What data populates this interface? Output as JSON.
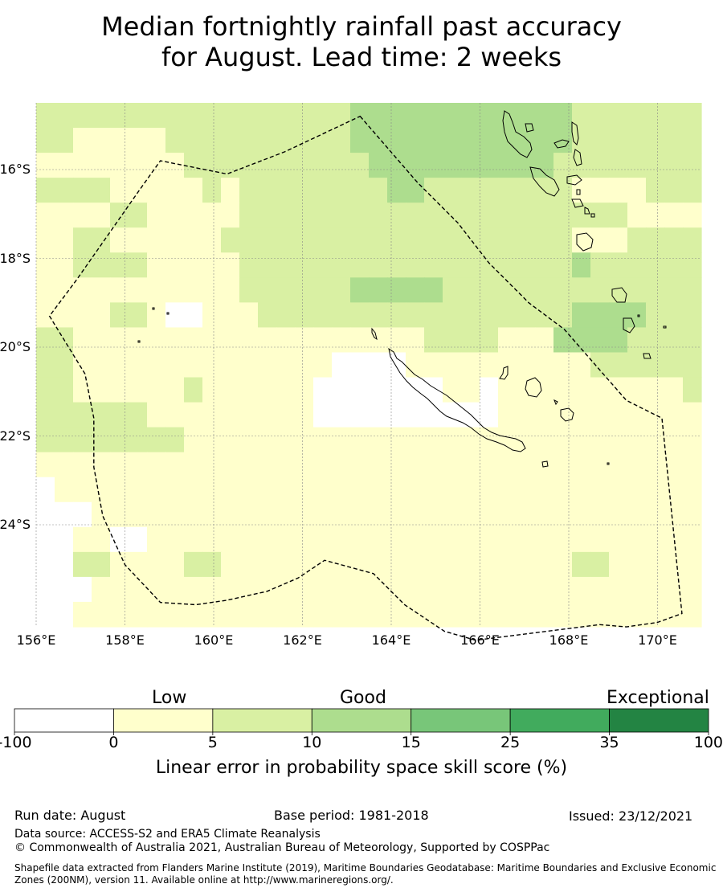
{
  "title_line1": "Median fortnightly rainfall past accuracy",
  "title_line2": "for August. Lead time: 2 weeks",
  "map": {
    "lat_labels": [
      "16°S",
      "18°S",
      "20°S",
      "22°S",
      "24°S"
    ],
    "lat_values": [
      -16,
      -18,
      -20,
      -22,
      -24
    ],
    "lon_labels": [
      "156°E",
      "158°E",
      "160°E",
      "162°E",
      "164°E",
      "166°E",
      "168°E",
      "170°E"
    ],
    "lon_values": [
      156,
      158,
      160,
      162,
      164,
      166,
      168,
      170
    ],
    "extent": {
      "lon_min": 156,
      "lon_max": 171,
      "lat_min": -26.3,
      "lat_max": -14.5
    },
    "grid_step_deg": 0.833,
    "boundary_lonlat": [
      [
        163.3,
        -14.8
      ],
      [
        164.6,
        -16.3
      ],
      [
        165.5,
        -17.2
      ],
      [
        166.2,
        -18.1
      ],
      [
        167.1,
        -19.0
      ],
      [
        167.9,
        -19.6
      ],
      [
        168.6,
        -20.4
      ],
      [
        169.3,
        -21.2
      ],
      [
        170.1,
        -21.6
      ],
      [
        170.55,
        -26.0
      ],
      [
        170.0,
        -26.2
      ],
      [
        169.3,
        -26.3
      ],
      [
        168.7,
        -26.25
      ],
      [
        165.9,
        -26.6
      ],
      [
        165.2,
        -26.4
      ],
      [
        164.3,
        -25.8
      ],
      [
        163.6,
        -25.1
      ],
      [
        162.5,
        -24.8
      ],
      [
        161.9,
        -25.2
      ],
      [
        161.2,
        -25.5
      ],
      [
        160.3,
        -25.7
      ],
      [
        159.6,
        -25.8
      ],
      [
        158.8,
        -25.75
      ],
      [
        158.0,
        -24.9
      ],
      [
        157.5,
        -23.8
      ],
      [
        157.3,
        -22.7
      ],
      [
        157.3,
        -21.6
      ],
      [
        157.1,
        -20.6
      ],
      [
        156.3,
        -19.3
      ],
      [
        156.9,
        -18.5
      ],
      [
        157.6,
        -17.5
      ],
      [
        158.3,
        -16.5
      ],
      [
        158.8,
        -15.8
      ],
      [
        160.3,
        -16.1
      ],
      [
        161.6,
        -15.6
      ],
      [
        163.3,
        -14.8
      ]
    ],
    "colors": {
      "c0": "#ffffff",
      "c1": "#ffffcc",
      "c2": "#d9f0a3",
      "c3": "#addd8e",
      "c4": "#78c679",
      "c5": "#41ab5d",
      "c6": "#238443"
    }
  },
  "legend": {
    "categories": [
      "Low",
      "Good",
      "Exceptional"
    ],
    "ticks": [
      "-100",
      "0",
      "5",
      "10",
      "15",
      "25",
      "35",
      "100"
    ],
    "colors": [
      "#ffffff",
      "#ffffcc",
      "#d9f0a3",
      "#addd8e",
      "#78c679",
      "#41ab5d",
      "#238443"
    ],
    "title": "Linear error in probability space skill score (%)"
  },
  "footer": {
    "run_date": "Run date: August",
    "base_period": "Base period: 1981-2018",
    "issued": "Issued: 23/12/2021",
    "data_source": "Data source: ACCESS-S2 and ERA5 Climate Reanalysis",
    "copyright": "© Commonwealth of Australia 2021, Australian Bureau of Meteorology, Supported by COSPPac",
    "shapefile": "Shapefile data extracted from Flanders Marine Institute (2019), Maritime Boundaries Geodatabase: Maritime Boundaries and Exclusive Economic Zones (200NM), version 11. Available online at http://www.marineregions.org/."
  }
}
